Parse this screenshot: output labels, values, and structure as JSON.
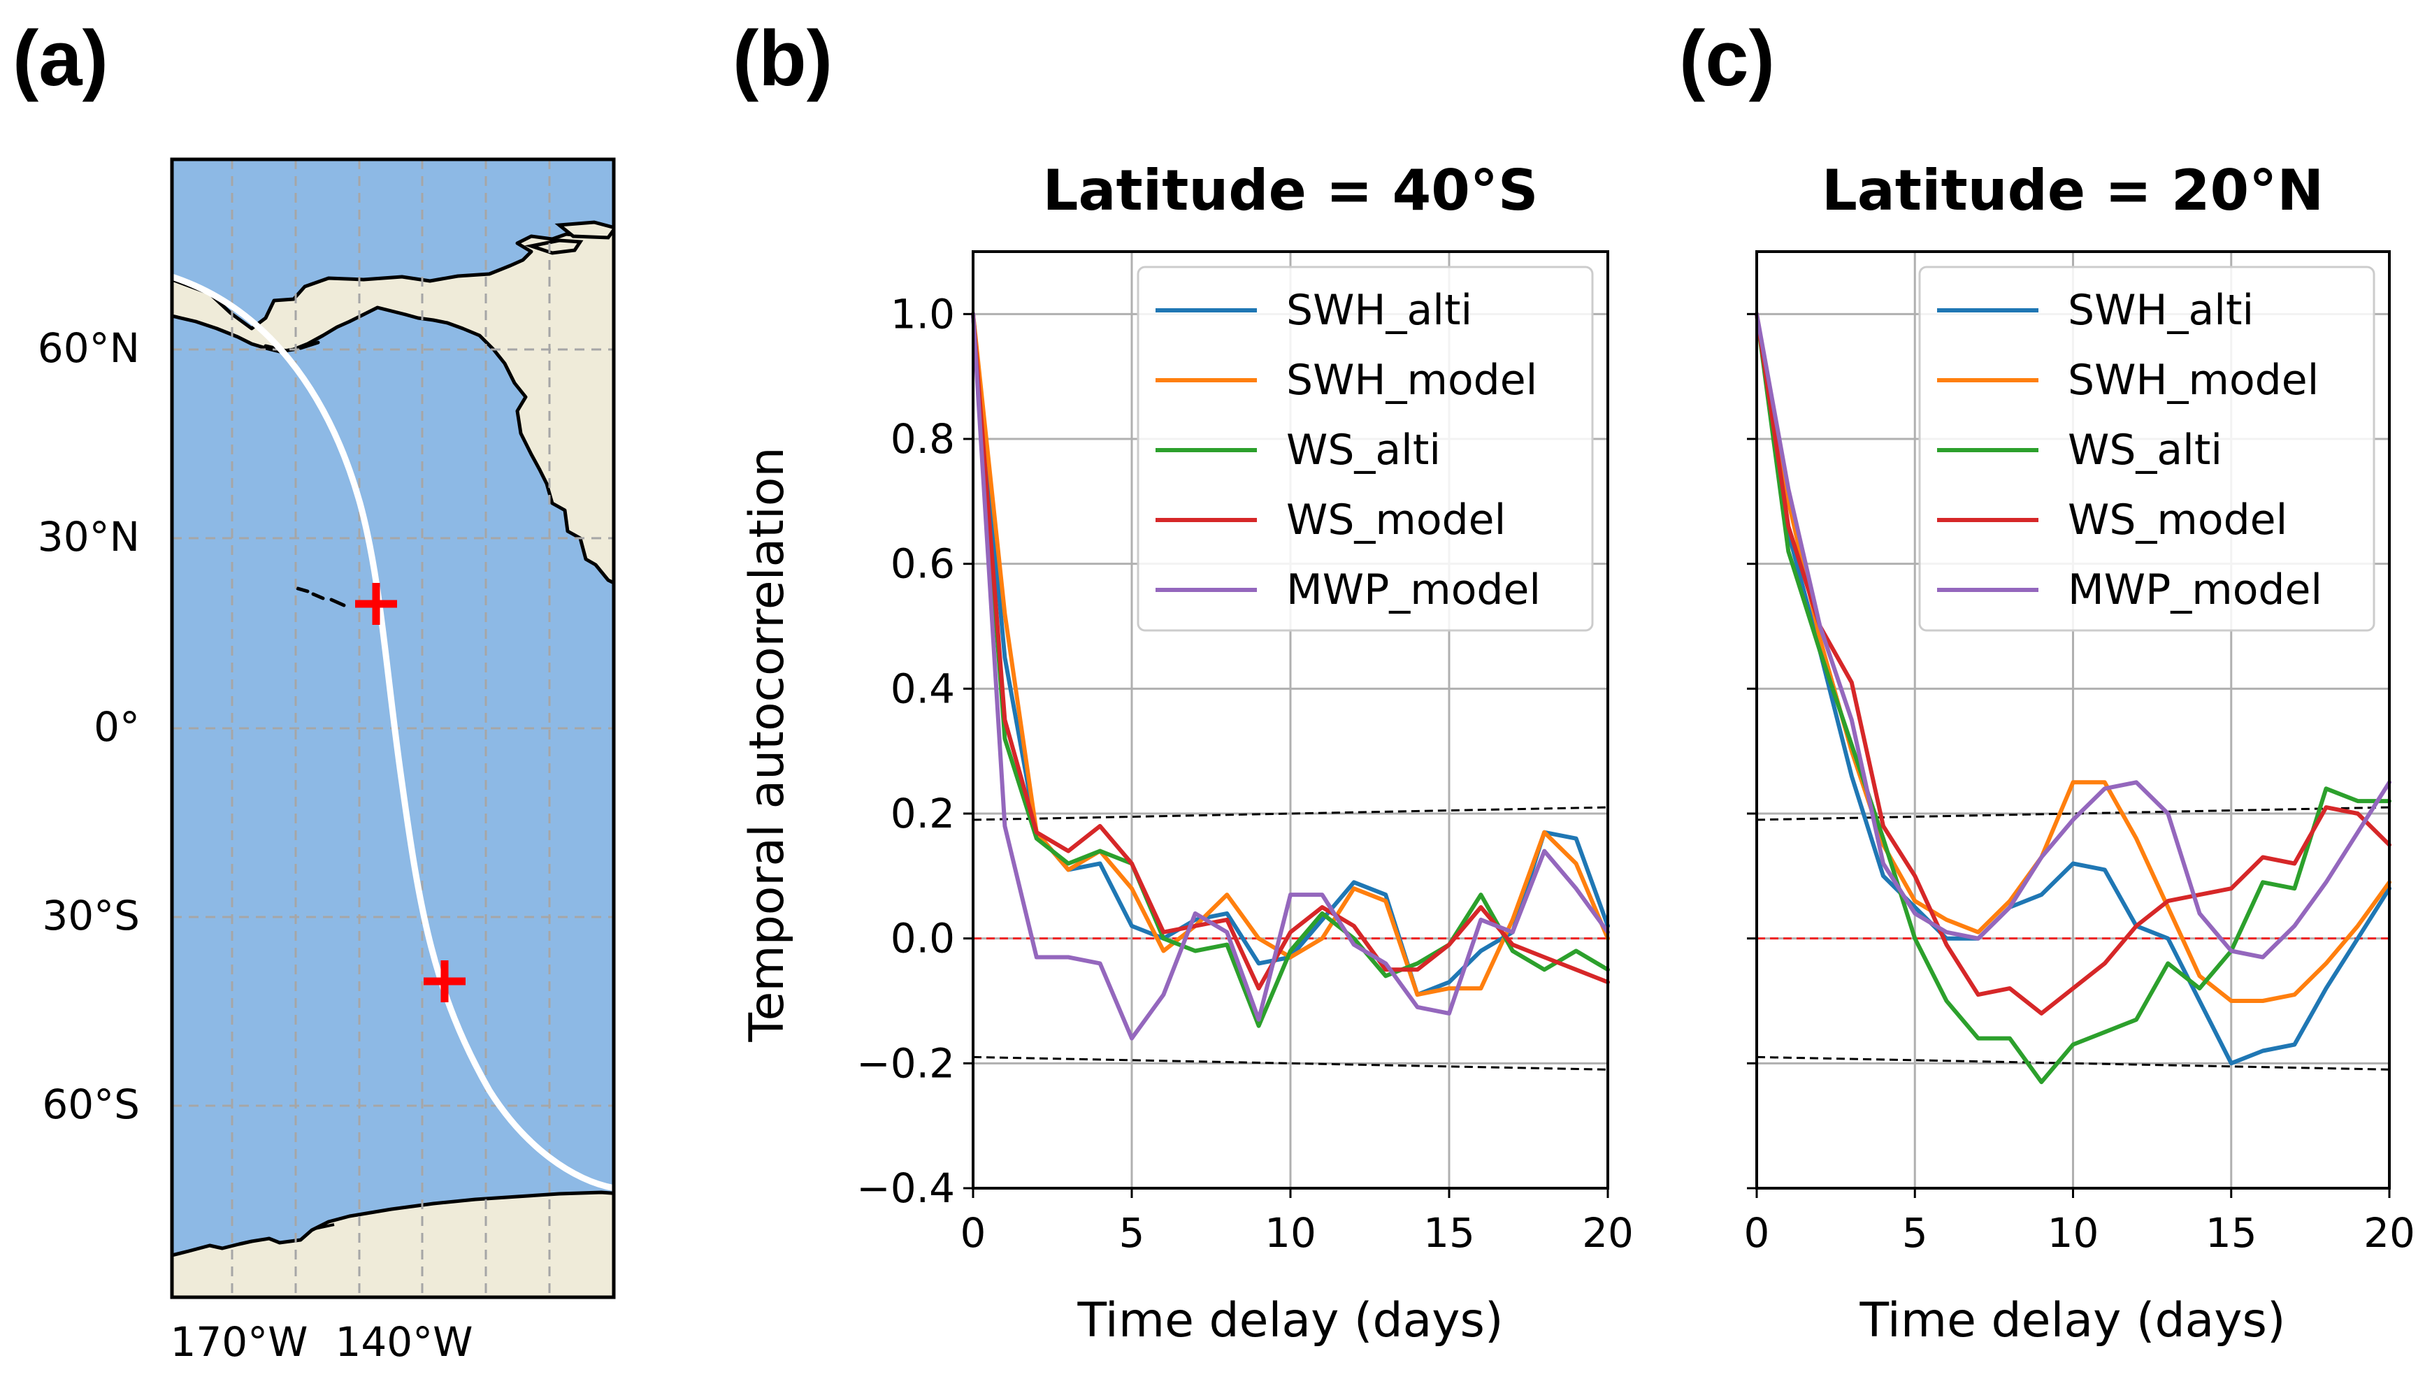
{
  "panel_labels": [
    "(a)",
    "(b)",
    "(c)"
  ],
  "map": {
    "lat_ticks": [
      "60°N",
      "30°N",
      "0°",
      "30°S",
      "60°S"
    ],
    "lon_ticks": [
      "170°W",
      "140°W"
    ],
    "colors": {
      "ocean": "#8db9e5",
      "land": "#efebd9",
      "track": "#ffffff",
      "marker": "#ff0000"
    },
    "markers": [
      {
        "name": "40S point",
        "lon": -142,
        "lat": -40
      },
      {
        "name": "20N point",
        "lon": -152,
        "lat": 20
      }
    ]
  },
  "chart_data": [
    {
      "type": "line",
      "title": "Latitude = 40°S",
      "xlabel": "Time delay (days)",
      "ylabel": "Temporal autocorrelation",
      "xlim": [
        0,
        20
      ],
      "ylim": [
        -0.4,
        1.1
      ],
      "xticks": [
        "0",
        "5",
        "10",
        "15",
        "20"
      ],
      "yticks": [
        "−0.4",
        "−0.2",
        "0.0",
        "0.2",
        "0.4",
        "0.6",
        "0.8",
        "1.0"
      ],
      "grid": true,
      "legend_position": "top-right",
      "x": [
        0,
        1,
        2,
        3,
        4,
        5,
        6,
        7,
        8,
        9,
        10,
        11,
        12,
        13,
        14,
        15,
        16,
        17,
        18,
        19,
        20
      ],
      "series": [
        {
          "name": "SWH_alti",
          "color": "#1f77b4",
          "values": [
            1.0,
            0.45,
            0.17,
            0.11,
            0.12,
            0.02,
            0.0,
            0.03,
            0.04,
            -0.04,
            -0.03,
            0.03,
            0.09,
            0.07,
            -0.09,
            -0.07,
            -0.02,
            0.01,
            0.17,
            0.16,
            0.02
          ]
        },
        {
          "name": "SWH_model",
          "color": "#ff7f0e",
          "values": [
            1.0,
            0.52,
            0.17,
            0.11,
            0.14,
            0.08,
            -0.02,
            0.02,
            0.07,
            0.0,
            -0.03,
            0.0,
            0.08,
            0.06,
            -0.09,
            -0.08,
            -0.08,
            0.03,
            0.17,
            0.12,
            0.0
          ]
        },
        {
          "name": "WS_alti",
          "color": "#2ca02c",
          "values": [
            1.0,
            0.32,
            0.16,
            0.12,
            0.14,
            0.12,
            0.0,
            -0.02,
            -0.01,
            -0.14,
            -0.02,
            0.04,
            0.0,
            -0.06,
            -0.04,
            -0.01,
            0.07,
            -0.02,
            -0.05,
            -0.02,
            -0.05
          ]
        },
        {
          "name": "WS_model",
          "color": "#d62728",
          "values": [
            1.0,
            0.35,
            0.17,
            0.14,
            0.18,
            0.12,
            0.01,
            0.02,
            0.03,
            -0.08,
            0.01,
            0.05,
            0.02,
            -0.05,
            -0.05,
            -0.01,
            0.05,
            -0.01,
            -0.03,
            -0.05,
            -0.07
          ]
        },
        {
          "name": "MWP_model",
          "color": "#9467bd",
          "values": [
            1.0,
            0.18,
            -0.03,
            -0.03,
            -0.04,
            -0.16,
            -0.09,
            0.04,
            0.01,
            -0.13,
            0.07,
            0.07,
            -0.01,
            -0.04,
            -0.11,
            -0.12,
            0.03,
            0.01,
            0.14,
            0.08,
            0.01
          ]
        }
      ],
      "reference_lines": [
        {
          "name": "zero",
          "color": "#ff0000",
          "y": [
            0.0,
            0.0
          ]
        },
        {
          "name": "upper bound",
          "color": "#000000",
          "y": [
            0.19,
            0.21
          ]
        },
        {
          "name": "lower bound",
          "color": "#000000",
          "y": [
            -0.19,
            -0.21
          ]
        }
      ]
    },
    {
      "type": "line",
      "title": "Latitude = 20°N",
      "xlabel": "Time delay (days)",
      "ylabel": "",
      "xlim": [
        0,
        20
      ],
      "ylim": [
        -0.4,
        1.1
      ],
      "xticks": [
        "0",
        "5",
        "10",
        "15",
        "20"
      ],
      "grid": true,
      "legend_position": "top-right",
      "x": [
        0,
        1,
        2,
        3,
        4,
        5,
        6,
        7,
        8,
        9,
        10,
        11,
        12,
        13,
        14,
        15,
        16,
        17,
        18,
        19,
        20
      ],
      "series": [
        {
          "name": "SWH_alti",
          "color": "#1f77b4",
          "values": [
            1.0,
            0.65,
            0.46,
            0.26,
            0.1,
            0.05,
            0.0,
            0.0,
            0.05,
            0.07,
            0.12,
            0.11,
            0.02,
            0.0,
            -0.1,
            -0.2,
            -0.18,
            -0.17,
            -0.08,
            0.0,
            0.08
          ]
        },
        {
          "name": "SWH_model",
          "color": "#ff7f0e",
          "values": [
            1.0,
            0.7,
            0.48,
            0.3,
            0.15,
            0.06,
            0.03,
            0.01,
            0.06,
            0.13,
            0.25,
            0.25,
            0.16,
            0.05,
            -0.06,
            -0.1,
            -0.1,
            -0.09,
            -0.04,
            0.02,
            0.09
          ]
        },
        {
          "name": "WS_alti",
          "color": "#2ca02c",
          "values": [
            1.0,
            0.62,
            0.46,
            0.31,
            0.16,
            0.0,
            -0.1,
            -0.16,
            -0.16,
            -0.23,
            -0.17,
            -0.15,
            -0.13,
            -0.04,
            -0.08,
            -0.02,
            0.09,
            0.08,
            0.24,
            0.22,
            0.22
          ]
        },
        {
          "name": "WS_model",
          "color": "#d62728",
          "values": [
            1.0,
            0.66,
            0.5,
            0.41,
            0.18,
            0.1,
            -0.01,
            -0.09,
            -0.08,
            -0.12,
            -0.08,
            -0.04,
            0.02,
            0.06,
            0.07,
            0.08,
            0.13,
            0.12,
            0.21,
            0.2,
            0.15
          ]
        },
        {
          "name": "MWP_model",
          "color": "#9467bd",
          "values": [
            1.0,
            0.72,
            0.5,
            0.35,
            0.12,
            0.04,
            0.01,
            0.0,
            0.05,
            0.13,
            0.19,
            0.24,
            0.25,
            0.2,
            0.04,
            -0.02,
            -0.03,
            0.02,
            0.09,
            0.17,
            0.25
          ]
        }
      ],
      "reference_lines": [
        {
          "name": "zero",
          "color": "#ff0000",
          "y": [
            0.0,
            0.0
          ]
        },
        {
          "name": "upper bound",
          "color": "#000000",
          "y": [
            0.19,
            0.21
          ]
        },
        {
          "name": "lower bound",
          "color": "#000000",
          "y": [
            -0.19,
            -0.21
          ]
        }
      ]
    }
  ]
}
